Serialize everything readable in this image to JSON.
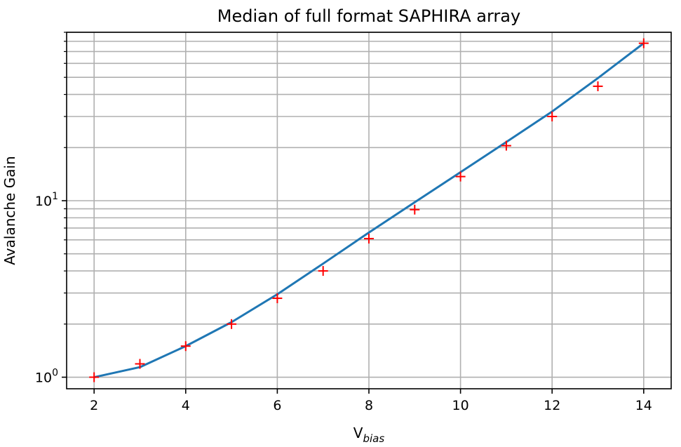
{
  "chart_data": {
    "type": "line",
    "title": "Median of full format SAPHIRA array",
    "xlabel": "V",
    "xlabel_sub": "bias",
    "ylabel": "Avalanche Gain",
    "yscale": "log",
    "xlim": [
      1.4,
      14.6
    ],
    "ylim": [
      0.86,
      90
    ],
    "grid": true,
    "x_ticks": [
      2,
      4,
      6,
      8,
      10,
      12,
      14
    ],
    "y_major_ticks": [
      {
        "value": 1,
        "base": "10",
        "exp": "0"
      },
      {
        "value": 10,
        "base": "10",
        "exp": "1"
      }
    ],
    "y_minor_ticks": [
      2,
      3,
      4,
      5,
      6,
      7,
      8,
      9,
      20,
      30,
      40,
      50,
      60,
      70,
      80,
      90
    ],
    "series": [
      {
        "kind": "line",
        "color": "#1f77b4",
        "x": [
          2,
          3,
          4,
          5,
          6,
          7,
          8,
          9,
          10,
          11,
          12,
          13,
          14
        ],
        "y": [
          1.0,
          1.14,
          1.5,
          2.05,
          2.95,
          4.4,
          6.6,
          9.8,
          14.5,
          21.5,
          32.0,
          49.5,
          78.0
        ]
      },
      {
        "kind": "scatter",
        "marker": "+",
        "color": "#ff0000",
        "x": [
          2,
          3,
          4,
          5,
          6,
          7,
          8,
          9,
          10,
          11,
          12,
          13,
          14
        ],
        "y": [
          1.0,
          1.19,
          1.5,
          2.0,
          2.8,
          4.0,
          6.1,
          8.9,
          13.7,
          20.5,
          30.0,
          44.5,
          78.0
        ]
      }
    ]
  }
}
